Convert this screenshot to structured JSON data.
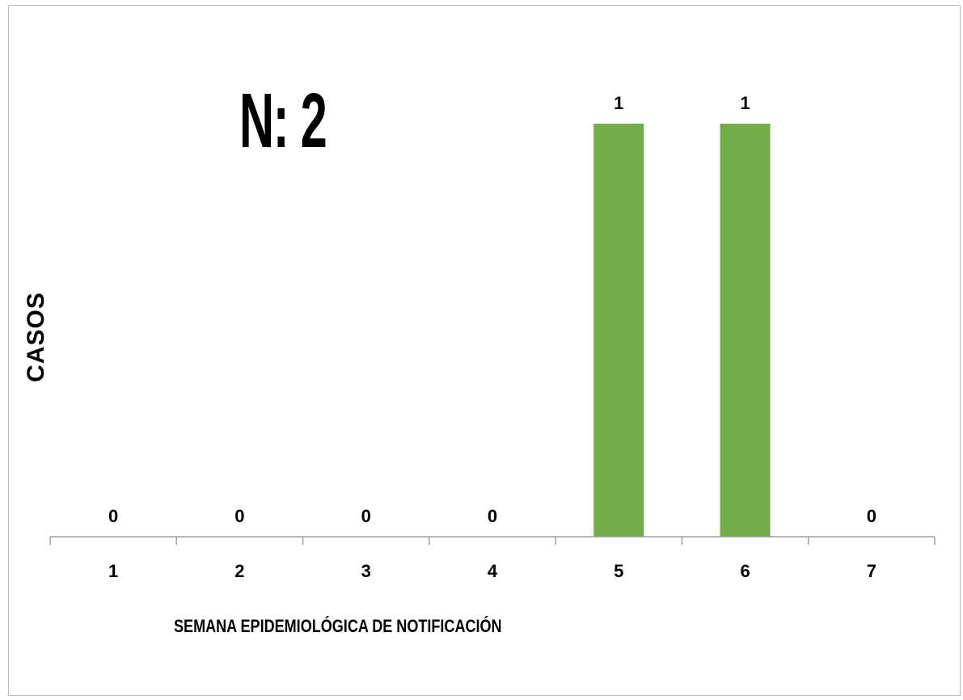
{
  "annotation": "N: 2",
  "colors": {
    "bar": "#70ad47",
    "axis": "#9e9e9e",
    "frame": "#bdbdbd"
  },
  "chart_data": {
    "type": "bar",
    "categories": [
      "1",
      "2",
      "3",
      "4",
      "5",
      "6",
      "7"
    ],
    "values": [
      0,
      0,
      0,
      0,
      1,
      1,
      0
    ],
    "title": "",
    "xlabel": "SEMANA EPIDEMIOLÓGICA DE NOTIFICACIÓN",
    "ylabel": "CASOS",
    "ylim": [
      0,
      1
    ],
    "grid": false,
    "data_labels": true,
    "legend": "none"
  }
}
